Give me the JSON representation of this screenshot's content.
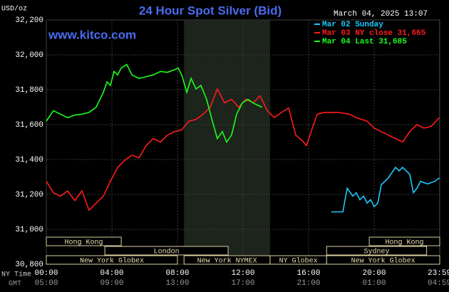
{
  "chart_data": {
    "type": "line",
    "title": "24 Hour Spot Silver (Bid)",
    "timestamp": "March 04, 2025 13:07",
    "watermark": "www.kitco.com",
    "y_label": "USD/oz",
    "x_label": "NY Time",
    "x2_label": "GMT",
    "xlim": [
      0,
      24
    ],
    "ylim": [
      30800,
      32200
    ],
    "grid": true,
    "highlight_range": [
      8.4,
      13.65
    ],
    "yticks": [
      {
        "value": 30800,
        "label": "30,800"
      },
      {
        "value": 31000,
        "label": "31,000"
      },
      {
        "value": 31200,
        "label": "31,200"
      },
      {
        "value": 31400,
        "label": "31,400"
      },
      {
        "value": 31600,
        "label": "31,600"
      },
      {
        "value": 31800,
        "label": "31,800"
      },
      {
        "value": 32000,
        "label": "32,000"
      },
      {
        "value": 32200,
        "label": "32,200"
      }
    ],
    "xticks": [
      {
        "value": 0,
        "label": "00:00"
      },
      {
        "value": 4,
        "label": "04:00"
      },
      {
        "value": 8,
        "label": "08:00"
      },
      {
        "value": 12,
        "label": "12:00"
      },
      {
        "value": 16,
        "label": "16:00"
      },
      {
        "value": 20,
        "label": "20:00"
      },
      {
        "value": 23.98,
        "label": "23:59"
      }
    ],
    "x2tick_labels": [
      "05:00",
      "09:00",
      "13:00",
      "17:00",
      "21:00",
      "01:00",
      "04:59"
    ],
    "sessions": [
      {
        "name": "Hong Kong",
        "start": 0,
        "end": 4.57
      },
      {
        "name": "London",
        "start": 3.57,
        "end": 11.09
      },
      {
        "name": "New York Globex",
        "start": 0,
        "end": 8.0
      },
      {
        "name": "New York NYMEX",
        "start": 8.4,
        "end": 13.65
      },
      {
        "name": "NY Globex",
        "start": 13.65,
        "end": 17.1
      },
      {
        "name": "Hong Kong",
        "start": 19.7,
        "end": 24
      },
      {
        "name": "Sydney",
        "start": 17.1,
        "end": 23.2
      },
      {
        "name": "New York Globex",
        "start": 17.1,
        "end": 24
      }
    ],
    "series": [
      {
        "name": "Mar 02 Sunday",
        "color": "#1ec8ff",
        "x": [
          17.39,
          18.09,
          18.35,
          18.7,
          18.91,
          19.13,
          19.35,
          19.57,
          19.78,
          20,
          20.22,
          20.43,
          20.87,
          21.3,
          21.52,
          21.74,
          21.96,
          22.17,
          22.39,
          22.61,
          22.83,
          23.26,
          23.7,
          23.98
        ],
        "values": [
          31100,
          31100,
          31235,
          31190,
          31210,
          31170,
          31190,
          31150,
          31170,
          31130,
          31150,
          31255,
          31295,
          31355,
          31335,
          31355,
          31335,
          31315,
          31210,
          31235,
          31275,
          31260,
          31275,
          31295
        ]
      },
      {
        "name": "Mar 03 NY close 31,665",
        "color": "#ff1a1a",
        "x": [
          0,
          0.43,
          0.87,
          1.3,
          1.74,
          2.17,
          2.61,
          3.04,
          3.48,
          3.91,
          4.35,
          4.78,
          5.22,
          5.65,
          6.09,
          6.52,
          6.96,
          7.39,
          7.83,
          8.26,
          8.7,
          9.13,
          9.57,
          10,
          10.43,
          10.87,
          11.3,
          11.74,
          12.17,
          12.61,
          13.04,
          13.48,
          13.91,
          14.35,
          14.78,
          15.22,
          15.65,
          15.87,
          16.3,
          16.52,
          16.96,
          17.83,
          18.48,
          18.91,
          19.57,
          20,
          20.43,
          20.87,
          21.3,
          21.74,
          22.17,
          22.61,
          23.04,
          23.48,
          23.98
        ],
        "values": [
          31275,
          31210,
          31190,
          31220,
          31165,
          31220,
          31110,
          31150,
          31190,
          31275,
          31355,
          31395,
          31425,
          31410,
          31480,
          31520,
          31500,
          31540,
          31560,
          31570,
          31620,
          31630,
          31660,
          31700,
          31805,
          31725,
          31745,
          31700,
          31745,
          31725,
          31765,
          31680,
          31640,
          31670,
          31695,
          31540,
          31505,
          31480,
          31600,
          31660,
          31670,
          31670,
          31660,
          31640,
          31620,
          31580,
          31560,
          31540,
          31520,
          31500,
          31560,
          31600,
          31580,
          31590,
          31640
        ]
      },
      {
        "name": "Mar 04 Last 31,685",
        "color": "#1aff1a",
        "x": [
          0,
          0.43,
          0.87,
          1.3,
          1.74,
          2.17,
          2.61,
          3.04,
          3.48,
          3.7,
          3.91,
          4.13,
          4.35,
          4.57,
          4.91,
          5.22,
          5.65,
          6.09,
          6.52,
          6.96,
          7.39,
          7.83,
          8.04,
          8.26,
          8.57,
          8.83,
          9.13,
          9.43,
          9.78,
          10.13,
          10.43,
          10.74,
          11,
          11.3,
          11.61,
          11.96,
          12.3,
          12.61,
          12.91,
          13.17
        ],
        "values": [
          31620,
          31680,
          31660,
          31640,
          31655,
          31660,
          31670,
          31700,
          31785,
          31845,
          31825,
          31905,
          31885,
          31925,
          31945,
          31885,
          31865,
          31875,
          31885,
          31905,
          31900,
          31915,
          31925,
          31885,
          31785,
          31865,
          31805,
          31825,
          31745,
          31620,
          31520,
          31560,
          31500,
          31540,
          31660,
          31725,
          31745,
          31725,
          31710,
          31700
        ]
      }
    ]
  }
}
